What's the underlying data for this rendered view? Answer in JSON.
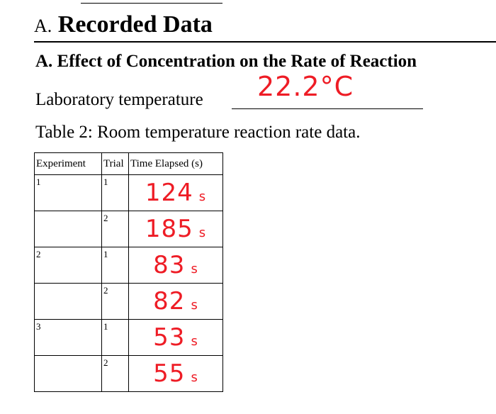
{
  "section": {
    "prefix": "A.",
    "name": "Recorded Data"
  },
  "subsection": {
    "title": "A. Effect of Concentration on the Rate of Reaction"
  },
  "lab_temperature": {
    "label": "Laboratory temperature",
    "value": "22.2°C"
  },
  "table": {
    "caption": "Table 2: Room temperature reaction rate data.",
    "headers": [
      "Experiment",
      "Trial",
      "Time Elapsed (s)"
    ],
    "rows": [
      {
        "experiment": "1",
        "trial": "1",
        "time": "124",
        "unit": "s"
      },
      {
        "experiment": "",
        "trial": "2",
        "time": "185",
        "unit": "s"
      },
      {
        "experiment": "2",
        "trial": "1",
        "time": "83",
        "unit": "s"
      },
      {
        "experiment": "",
        "trial": "2",
        "time": "82",
        "unit": "s"
      },
      {
        "experiment": "3",
        "trial": "1",
        "time": "53",
        "unit": "s"
      },
      {
        "experiment": "",
        "trial": "2",
        "time": "55",
        "unit": "s"
      }
    ]
  },
  "colors": {
    "handwriting": "#ee1c25",
    "text": "#000000"
  }
}
